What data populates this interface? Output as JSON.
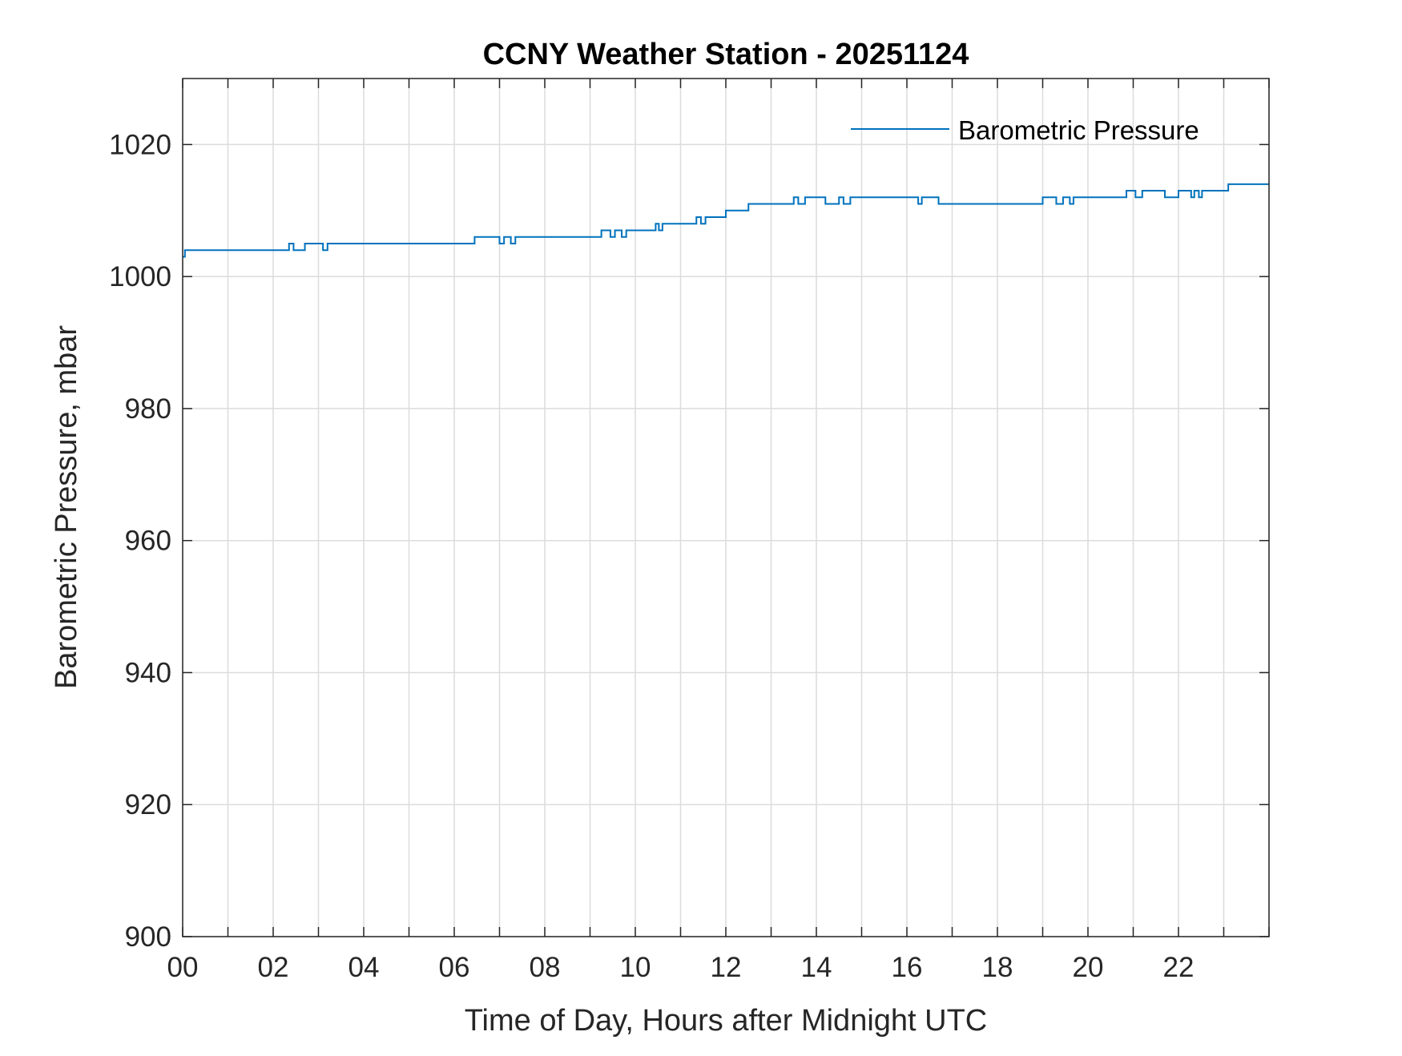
{
  "chart_data": {
    "type": "line",
    "title": "CCNY Weather Station - 20251124",
    "xlabel": "Time of Day, Hours after Midnight UTC",
    "ylabel": "Barometric Pressure, mbar",
    "xlim": [
      0,
      24
    ],
    "ylim": [
      900,
      1030
    ],
    "xticks": [
      0,
      2,
      4,
      6,
      8,
      10,
      12,
      14,
      16,
      18,
      20,
      22
    ],
    "xtick_labels": [
      "00",
      "02",
      "04",
      "06",
      "08",
      "10",
      "12",
      "14",
      "16",
      "18",
      "20",
      "22"
    ],
    "x_minor_grid_step": 1,
    "yticks": [
      900,
      920,
      940,
      960,
      980,
      1000,
      1020
    ],
    "ytick_labels": [
      "900",
      "920",
      "940",
      "960",
      "980",
      "1000",
      "1020"
    ],
    "grid": true,
    "legend": {
      "position": "top-right",
      "entries": [
        "Barometric Pressure"
      ]
    },
    "series": [
      {
        "name": "Barometric Pressure",
        "color": "#0072BD",
        "step": [
          [
            0,
            1003
          ],
          [
            0.05,
            1004
          ],
          [
            2.35,
            1005
          ],
          [
            2.45,
            1004
          ],
          [
            2.7,
            1005
          ],
          [
            3.1,
            1004
          ],
          [
            3.2,
            1005
          ],
          [
            6.45,
            1006
          ],
          [
            7.0,
            1005
          ],
          [
            7.1,
            1006
          ],
          [
            7.25,
            1005
          ],
          [
            7.35,
            1006
          ],
          [
            9.25,
            1007
          ],
          [
            9.45,
            1006
          ],
          [
            9.55,
            1007
          ],
          [
            9.7,
            1006
          ],
          [
            9.8,
            1007
          ],
          [
            10.45,
            1008
          ],
          [
            10.52,
            1007
          ],
          [
            10.6,
            1008
          ],
          [
            11.35,
            1009
          ],
          [
            11.45,
            1008
          ],
          [
            11.55,
            1009
          ],
          [
            12.0,
            1010
          ],
          [
            12.5,
            1011
          ],
          [
            13.5,
            1012
          ],
          [
            13.6,
            1011
          ],
          [
            13.75,
            1012
          ],
          [
            14.2,
            1011
          ],
          [
            14.5,
            1012
          ],
          [
            14.6,
            1011
          ],
          [
            14.75,
            1012
          ],
          [
            16.25,
            1011
          ],
          [
            16.33,
            1012
          ],
          [
            16.7,
            1011
          ],
          [
            19.0,
            1012
          ],
          [
            19.3,
            1011
          ],
          [
            19.45,
            1012
          ],
          [
            19.6,
            1011
          ],
          [
            19.68,
            1012
          ],
          [
            20.85,
            1013
          ],
          [
            21.05,
            1012
          ],
          [
            21.2,
            1013
          ],
          [
            21.7,
            1012
          ],
          [
            22.0,
            1013
          ],
          [
            22.28,
            1012
          ],
          [
            22.35,
            1013
          ],
          [
            22.45,
            1012
          ],
          [
            22.52,
            1013
          ],
          [
            23.1,
            1014
          ],
          [
            24,
            1014
          ]
        ]
      }
    ]
  }
}
